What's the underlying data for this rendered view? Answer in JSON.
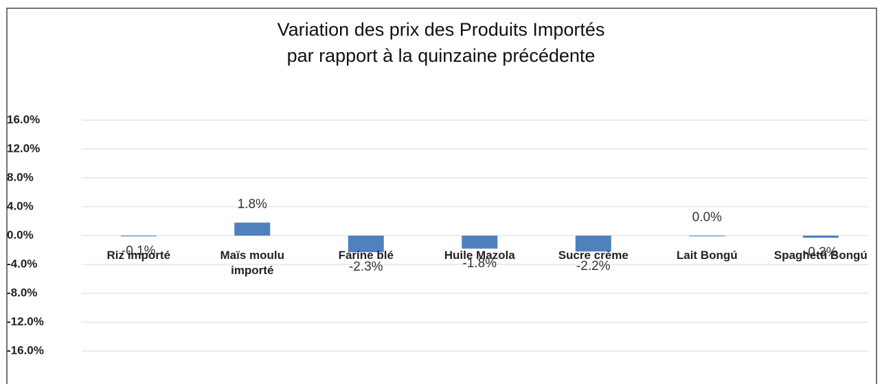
{
  "chart_data": {
    "type": "bar",
    "title": "Variation des prix des Produits Importés\npar rapport à la quinzaine précédente",
    "categories": [
      "Riz importé",
      "Maïs moulu importé",
      "Farine blé",
      "Huile Mazola",
      "Sucre crème",
      "Lait Bongú",
      "Spaghetti Bongú"
    ],
    "values": [
      -0.1,
      1.8,
      -2.3,
      -1.8,
      -2.2,
      0.0,
      -0.3
    ],
    "value_labels": [
      "-0.1%",
      "1.8%",
      "-2.3%",
      "-1.8%",
      "-2.2%",
      "0.0%",
      "-0.3%"
    ],
    "color": "#4f81bd",
    "ylim": [
      -16,
      16
    ],
    "yticks": [
      {
        "value": 16,
        "label": "16.0%"
      },
      {
        "value": 12,
        "label": "12.0%"
      },
      {
        "value": 8,
        "label": "8.0%"
      },
      {
        "value": 4,
        "label": "4.0%"
      },
      {
        "value": 0,
        "label": "0.0%"
      },
      {
        "value": -4,
        "label": "-4.0%"
      },
      {
        "value": -8,
        "label": "-8.0%"
      },
      {
        "value": -12,
        "label": "-12.0%"
      },
      {
        "value": -16,
        "label": "-16.0%"
      }
    ],
    "grid": true
  }
}
